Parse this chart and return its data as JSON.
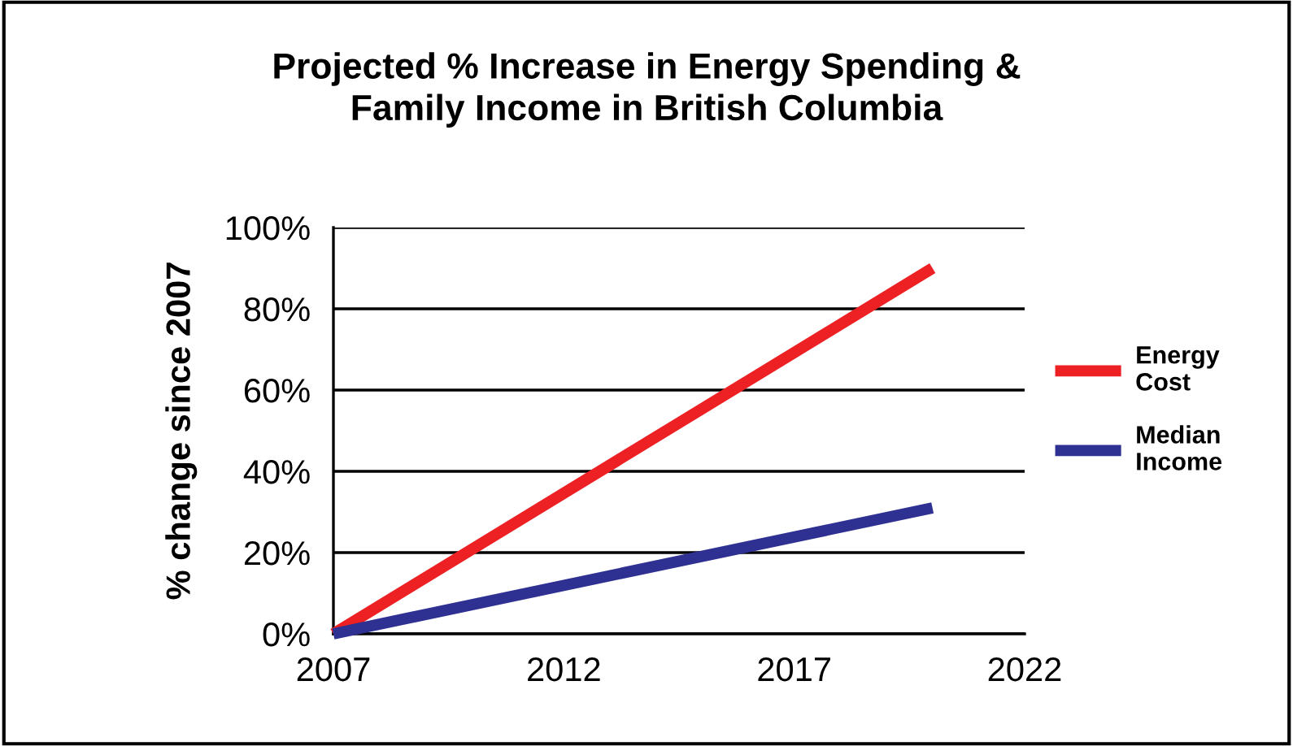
{
  "chart_data": {
    "type": "line",
    "title": "Projected % Increase in Energy Spending &\nFamily Income in British Columbia",
    "ylabel": "% change since 2007",
    "x": [
      2007,
      2020
    ],
    "series": [
      {
        "name": "Energy\nCost",
        "color": "#ed2024",
        "values": [
          0,
          90
        ]
      },
      {
        "name": "Median\nIncome",
        "color": "#2e3192",
        "values": [
          0,
          31
        ]
      }
    ],
    "xlim": [
      2007,
      2022
    ],
    "xticks": [
      2007,
      2012,
      2017,
      2022
    ],
    "ylim": [
      0,
      100
    ],
    "yticks": [
      {
        "value": 0,
        "label": "0%"
      },
      {
        "value": 20,
        "label": "20%"
      },
      {
        "value": 40,
        "label": "40%"
      },
      {
        "value": 60,
        "label": "60%"
      },
      {
        "value": 80,
        "label": "80%"
      },
      {
        "value": 100,
        "label": "100%"
      }
    ],
    "grid": "y",
    "legend": "right",
    "marker": "none",
    "line_style": "solid"
  }
}
